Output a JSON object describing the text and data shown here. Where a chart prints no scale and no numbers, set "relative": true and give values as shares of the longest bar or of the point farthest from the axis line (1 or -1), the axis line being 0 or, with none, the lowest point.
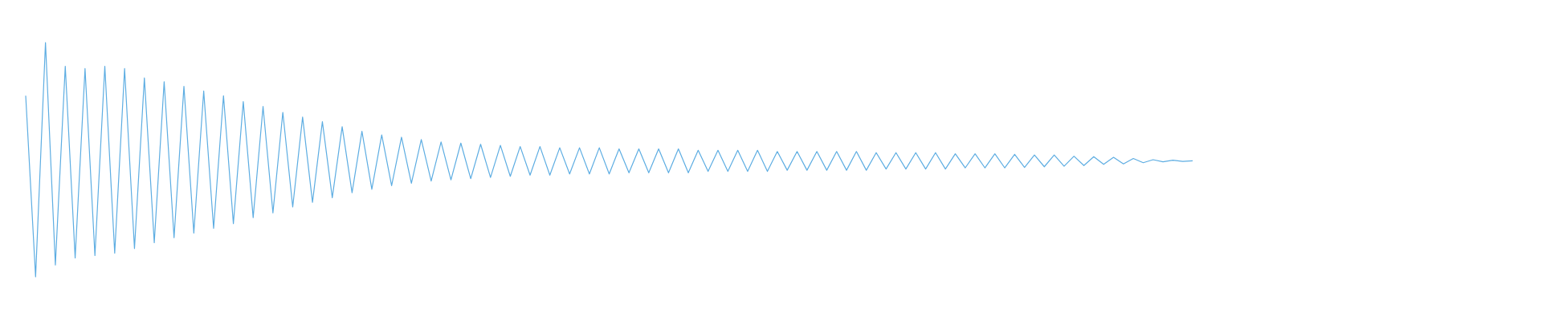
{
  "chart_data": {
    "type": "line",
    "relative": true,
    "color": "#5dade2",
    "categories": [
      null,
      null,
      null,
      null,
      null,
      null,
      null,
      null,
      null,
      null,
      null,
      null,
      null,
      null,
      null,
      null,
      null,
      null,
      null,
      null,
      null,
      null,
      null,
      null,
      null,
      null,
      null,
      null,
      null,
      null,
      null,
      null,
      null,
      null,
      null,
      null,
      null,
      null,
      null,
      null,
      null,
      null,
      null,
      null,
      null,
      null,
      null,
      null,
      null,
      null,
      null,
      null,
      null,
      null,
      null,
      null,
      null,
      null,
      null,
      null,
      null,
      null,
      null,
      null,
      null,
      null,
      null,
      null,
      null,
      null,
      null,
      null,
      null,
      null,
      null,
      null,
      null,
      null,
      null,
      null,
      null,
      null,
      null,
      null,
      null,
      null,
      null,
      null,
      null,
      null,
      null,
      null,
      null,
      null,
      null,
      null,
      null,
      null,
      null,
      null,
      null,
      null,
      null,
      null,
      null,
      null,
      null,
      null,
      null,
      null,
      null,
      null,
      null,
      null,
      null,
      null,
      null,
      null,
      null
    ],
    "values": [
      0.773,
      0,
      1,
      0.051,
      0.899,
      0.081,
      0.889,
      0.091,
      0.899,
      0.101,
      0.889,
      0.121,
      0.849,
      0.146,
      0.833,
      0.167,
      0.813,
      0.187,
      0.793,
      0.207,
      0.773,
      0.227,
      0.748,
      0.253,
      0.727,
      0.273,
      0.702,
      0.298,
      0.682,
      0.318,
      0.662,
      0.338,
      0.641,
      0.359,
      0.621,
      0.374,
      0.606,
      0.389,
      0.596,
      0.399,
      0.586,
      0.409,
      0.576,
      0.414,
      0.571,
      0.419,
      0.566,
      0.424,
      0.561,
      0.429,
      0.556,
      0.434,
      0.556,
      0.434,
      0.551,
      0.439,
      0.551,
      0.439,
      0.551,
      0.439,
      0.546,
      0.444,
      0.546,
      0.444,
      0.546,
      0.444,
      0.546,
      0.444,
      0.54,
      0.45,
      0.54,
      0.45,
      0.54,
      0.45,
      0.54,
      0.45,
      0.535,
      0.455,
      0.535,
      0.455,
      0.535,
      0.455,
      0.535,
      0.455,
      0.535,
      0.455,
      0.53,
      0.46,
      0.53,
      0.46,
      0.53,
      0.46,
      0.53,
      0.46,
      0.525,
      0.465,
      0.525,
      0.465,
      0.525,
      0.465,
      0.523,
      0.467,
      0.52,
      0.47,
      0.52,
      0.472,
      0.515,
      0.475,
      0.513,
      0.48,
      0.51,
      0.482,
      0.505,
      0.487,
      0.5,
      0.491,
      0.498,
      0.493,
      0.495
    ]
  }
}
